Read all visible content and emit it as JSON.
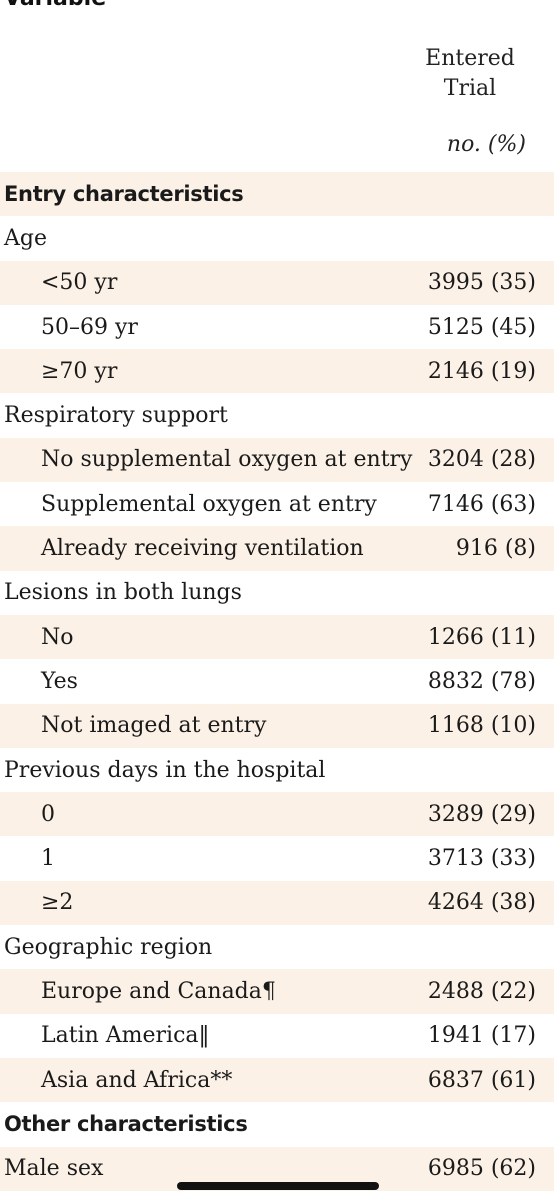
{
  "top_cut_label": "Variable",
  "column_header": {
    "label": "Entered Trial",
    "unit": "no. (%)"
  },
  "rows": [
    {
      "label": "Entry characteristics",
      "value": "",
      "kind": "section"
    },
    {
      "label": "Age",
      "value": "",
      "kind": "group"
    },
    {
      "label": "<50 yr",
      "value": "3995 (35)",
      "kind": "sub"
    },
    {
      "label": "50–69 yr",
      "value": "5125 (45)",
      "kind": "sub"
    },
    {
      "label": "≥70 yr",
      "value": "2146 (19)",
      "kind": "sub"
    },
    {
      "label": "Respiratory support",
      "value": "",
      "kind": "group"
    },
    {
      "label": "No supplemental oxygen at entry",
      "value": "3204 (28)",
      "kind": "sub"
    },
    {
      "label": "Supplemental oxygen at entry",
      "value": "7146 (63)",
      "kind": "sub"
    },
    {
      "label": "Already receiving ventilation",
      "value": "916 (8)",
      "kind": "sub"
    },
    {
      "label": "Lesions in both lungs",
      "value": "",
      "kind": "group"
    },
    {
      "label": "No",
      "value": "1266 (11)",
      "kind": "sub"
    },
    {
      "label": "Yes",
      "value": "8832 (78)",
      "kind": "sub"
    },
    {
      "label": "Not imaged at entry",
      "value": "1168 (10)",
      "kind": "sub"
    },
    {
      "label": "Previous days in the hospital",
      "value": "",
      "kind": "group"
    },
    {
      "label": "0",
      "value": "3289 (29)",
      "kind": "sub"
    },
    {
      "label": "1",
      "value": "3713 (33)",
      "kind": "sub"
    },
    {
      "label": "≥2",
      "value": "4264 (38)",
      "kind": "sub"
    },
    {
      "label": "Geographic region",
      "value": "",
      "kind": "group"
    },
    {
      "label": "Europe and Canada¶",
      "value": "2488 (22)",
      "kind": "sub"
    },
    {
      "label": "Latin America‖",
      "value": "1941 (17)",
      "kind": "sub"
    },
    {
      "label": "Asia and Africa**",
      "value": "6837 (61)",
      "kind": "sub"
    },
    {
      "label": "Other characteristics",
      "value": "",
      "kind": "section"
    },
    {
      "label": "Male sex",
      "value": "6985 (62)",
      "kind": "group"
    }
  ]
}
